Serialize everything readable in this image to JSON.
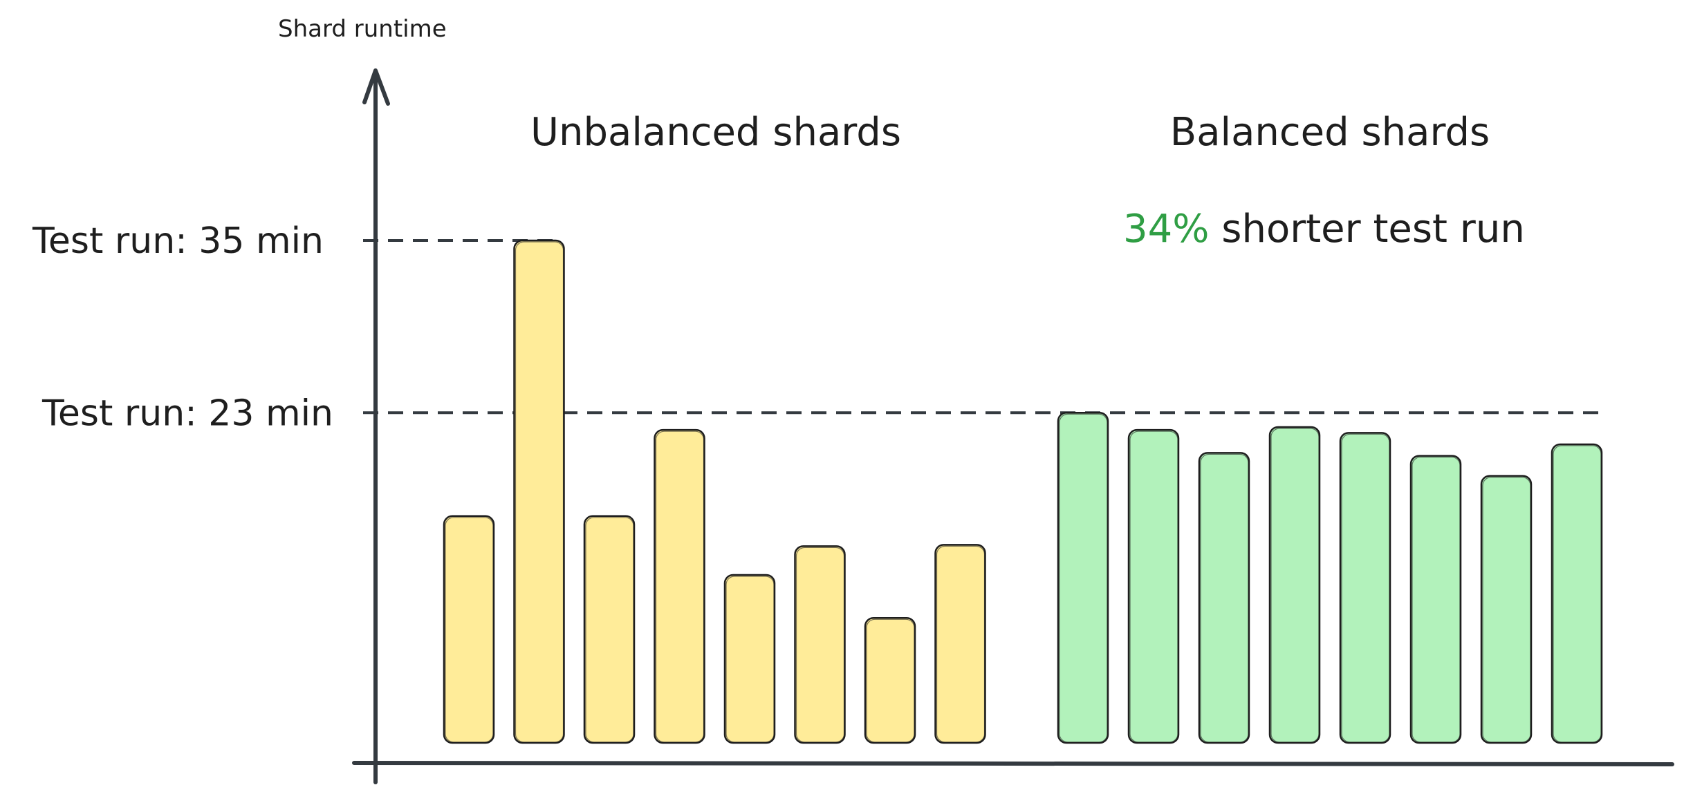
{
  "chart_data": {
    "type": "bar",
    "ylabel": "Shard runtime",
    "xlabel": "",
    "ylim": [
      0,
      40.5
    ],
    "grid": false,
    "reference_lines": [
      {
        "label": "Test run: 35 min",
        "value": 35
      },
      {
        "label": "Test run: 23 min",
        "value": 23
      }
    ],
    "groups": [
      {
        "title": "Unbalanced shards",
        "color": "#ffec99",
        "values": [
          15.8,
          35,
          15.8,
          21.8,
          11.7,
          13.7,
          8.7,
          13.8
        ]
      },
      {
        "title": "Balanced shards",
        "color": "#b2f2bb",
        "values": [
          23,
          21.8,
          20.2,
          22.0,
          21.6,
          20.0,
          18.6,
          20.8
        ]
      }
    ],
    "annotation": {
      "highlight": "34%",
      "text": " shorter test run",
      "highlight_color": "#2f9e44"
    }
  }
}
